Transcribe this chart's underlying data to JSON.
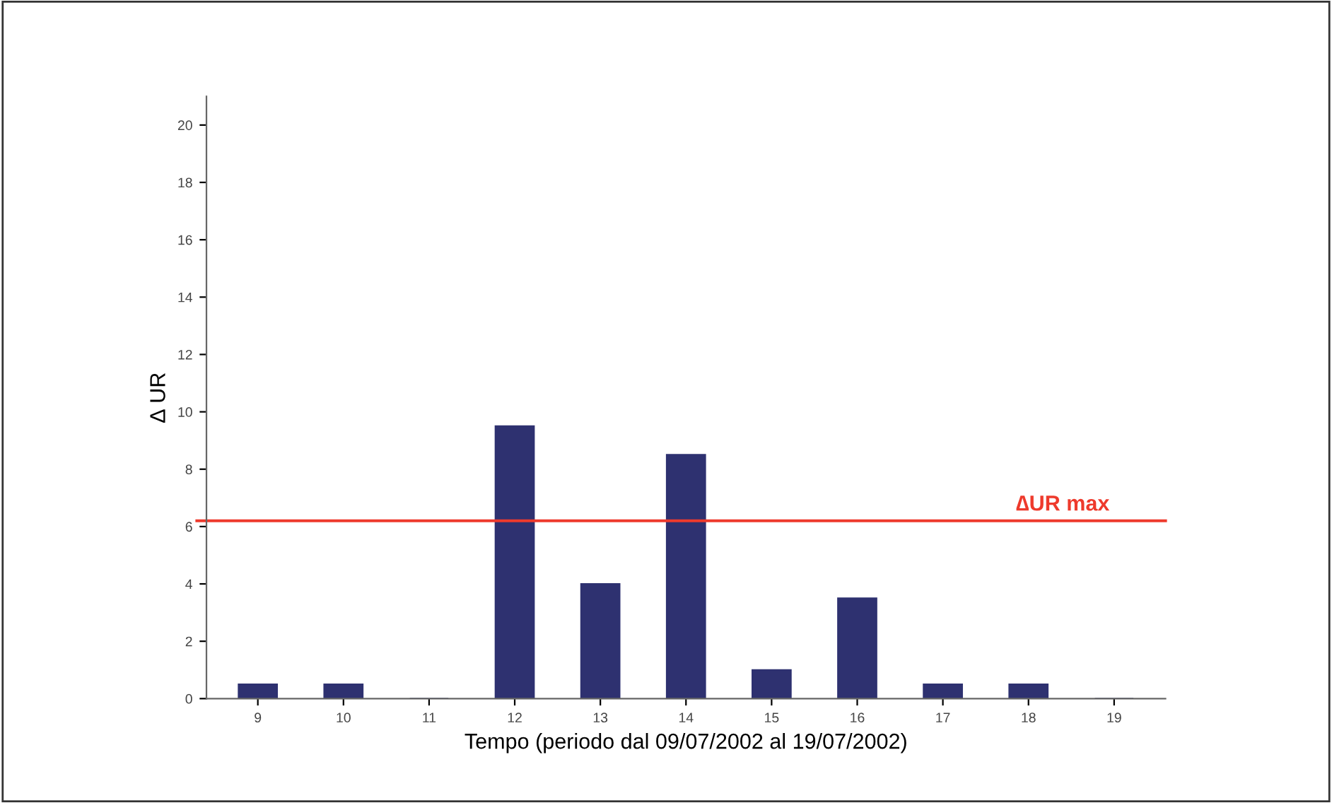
{
  "chart_data": {
    "type": "bar",
    "categories": [
      "9",
      "10",
      "11",
      "12",
      "13",
      "14",
      "15",
      "16",
      "17",
      "18",
      "19"
    ],
    "values": [
      0.5,
      0.5,
      0,
      9.5,
      4,
      8.5,
      1,
      3.5,
      0.5,
      0.5,
      0
    ],
    "color": "#2e3170",
    "xlabel": "Tempo (periodo dal 09/07/2002 al 19/07/2002)",
    "ylabel": "∆ UR",
    "ylim": [
      0,
      21
    ],
    "yticks": [
      0,
      2,
      4,
      6,
      8,
      10,
      12,
      14,
      16,
      18,
      20
    ],
    "ref_lines": [
      {
        "axis": "y",
        "value": 6.2,
        "label": "∆UR max",
        "color": "#ee3a2c"
      }
    ],
    "grid": false
  }
}
